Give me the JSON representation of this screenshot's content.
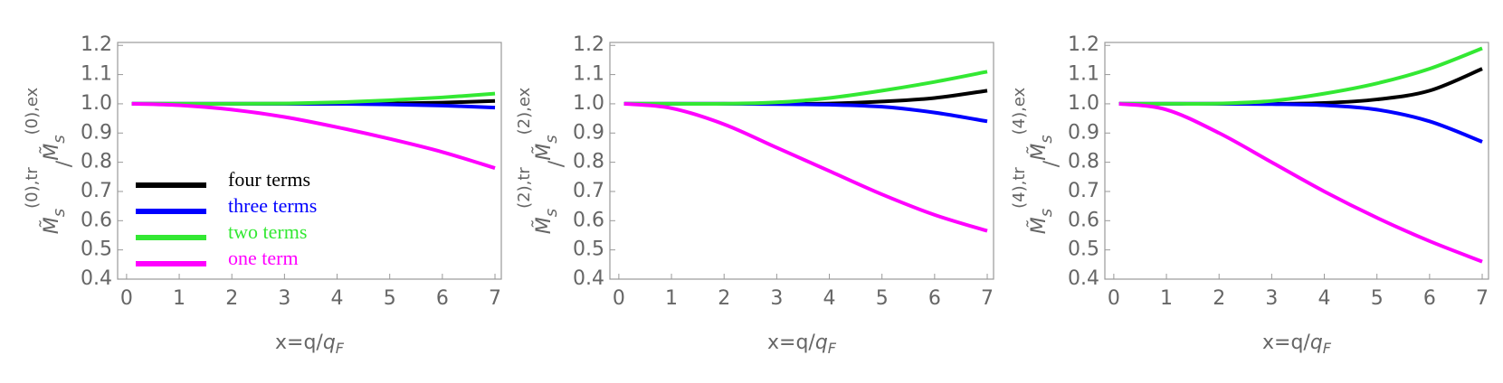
{
  "chart_data": [
    {
      "type": "line",
      "ylabel": [
        "M̃",
        "s",
        "(0),tr",
        "/",
        "M̃",
        "s",
        "(0),ex"
      ],
      "xlabel": [
        "x=q/",
        "q",
        "F"
      ],
      "x": [
        0.1,
        1,
        2,
        3,
        4,
        5,
        6,
        7
      ],
      "xlim": [
        -0.17,
        7.12
      ],
      "xticks": [
        0,
        1,
        2,
        3,
        4,
        5,
        6,
        7
      ],
      "ylim": [
        0.4,
        1.21
      ],
      "yticks": [
        0.4,
        0.5,
        0.6,
        0.7,
        0.8,
        0.9,
        {
          "value": 1,
          "label": "1.0"
        },
        1.1,
        1.2
      ],
      "legend": "lower left",
      "series": [
        {
          "name": "four terms",
          "color": "#000000",
          "values": [
            1,
            1,
            1,
            1,
            1,
            1.001,
            1.004,
            1.01
          ]
        },
        {
          "name": "three terms",
          "color": "#0000ff",
          "values": [
            1,
            1,
            1,
            1,
            1,
            0.998,
            0.994,
            0.987
          ]
        },
        {
          "name": "two terms",
          "color": "#33e833",
          "values": [
            1,
            1,
            1,
            1.001,
            1.005,
            1.012,
            1.022,
            1.035
          ]
        },
        {
          "name": "one term",
          "color": "#ff00ff",
          "values": [
            1,
            0.995,
            0.98,
            0.955,
            0.92,
            0.88,
            0.835,
            0.78
          ]
        }
      ]
    },
    {
      "type": "line",
      "ylabel": [
        "M̃",
        "s",
        "(2),tr",
        "/",
        "M̃",
        "s",
        "(2),ex"
      ],
      "xlabel": [
        "x=q/",
        "q",
        "F"
      ],
      "x": [
        0.1,
        1,
        2,
        3,
        4,
        5,
        6,
        7
      ],
      "xlim": [
        -0.17,
        7.12
      ],
      "xticks": [
        0,
        1,
        2,
        3,
        4,
        5,
        6,
        7
      ],
      "ylim": [
        0.4,
        1.21
      ],
      "yticks": [
        0.4,
        0.5,
        0.6,
        0.7,
        0.8,
        0.9,
        {
          "value": 1,
          "label": "1.0"
        },
        1.1,
        1.2
      ],
      "series": [
        {
          "color": "#000000",
          "values": [
            1,
            1,
            1,
            1,
            1.001,
            1.008,
            1.02,
            1.045
          ]
        },
        {
          "color": "#0000ff",
          "values": [
            1,
            1,
            1,
            0.999,
            0.997,
            0.99,
            0.97,
            0.94
          ]
        },
        {
          "color": "#33e833",
          "values": [
            1,
            1,
            1,
            1.005,
            1.02,
            1.045,
            1.075,
            1.11
          ]
        },
        {
          "color": "#ff00ff",
          "values": [
            1,
            0.985,
            0.93,
            0.85,
            0.77,
            0.69,
            0.62,
            0.565
          ]
        }
      ]
    },
    {
      "type": "line",
      "ylabel": [
        "M̃",
        "s",
        "(4),tr",
        "/",
        "M̃",
        "s",
        "(4),ex"
      ],
      "xlabel": [
        "x=q/",
        "q",
        "F"
      ],
      "x": [
        0.1,
        1,
        2,
        3,
        4,
        5,
        6,
        7
      ],
      "xlim": [
        -0.17,
        7.12
      ],
      "xticks": [
        0,
        1,
        2,
        3,
        4,
        5,
        6,
        7
      ],
      "ylim": [
        0.4,
        1.21
      ],
      "yticks": [
        0.4,
        0.5,
        0.6,
        0.7,
        0.8,
        0.9,
        {
          "value": 1,
          "label": "1.0"
        },
        1.1,
        1.2
      ],
      "series": [
        {
          "color": "#000000",
          "values": [
            1,
            1,
            1,
            1,
            1.003,
            1.015,
            1.045,
            1.12
          ]
        },
        {
          "color": "#0000ff",
          "values": [
            1,
            1,
            1,
            0.999,
            0.995,
            0.98,
            0.94,
            0.87
          ]
        },
        {
          "color": "#33e833",
          "values": [
            1,
            1,
            1.001,
            1.01,
            1.035,
            1.07,
            1.12,
            1.19
          ]
        },
        {
          "color": "#ff00ff",
          "values": [
            1,
            0.98,
            0.9,
            0.8,
            0.7,
            0.61,
            0.53,
            0.46
          ]
        }
      ]
    }
  ]
}
